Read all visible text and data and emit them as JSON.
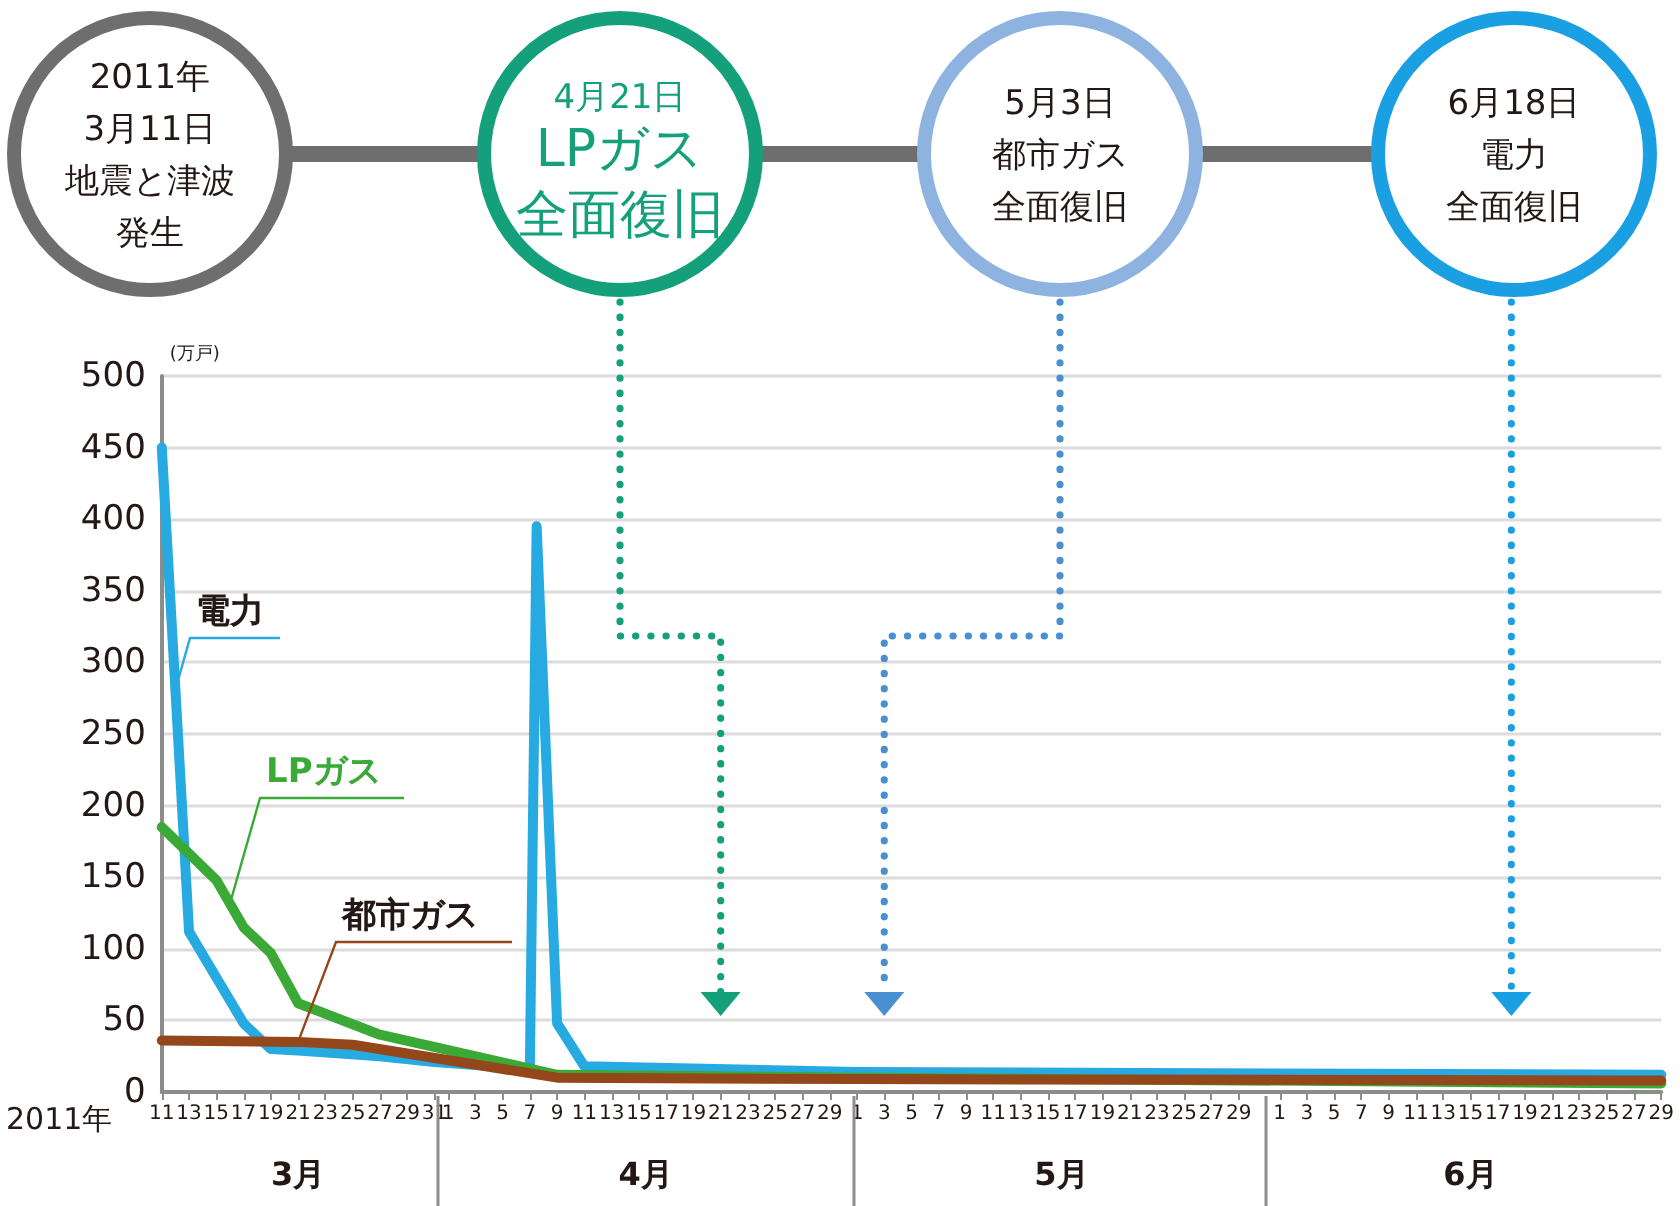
{
  "chart_data": {
    "type": "line",
    "xlabel": "2011年",
    "ylabel": "(万戸)",
    "annotations": [
      "2011年",
      "3月11日",
      "地震と津波",
      "発生",
      "4月21日",
      "LPガス",
      "全面復旧",
      "5月3日",
      "都市ガス",
      "全面復旧",
      "6月18日",
      "電力",
      "全面復旧"
    ],
    "series": [
      {
        "name": "電力",
        "color": "#27aae1",
        "x": [
          "2011-03-11",
          "2011-03-13",
          "2011-03-15",
          "2011-03-17",
          "2011-03-19",
          "2011-03-21",
          "2011-03-27",
          "2011-03-31",
          "2011-04-07",
          "2011-04-07T12:00",
          "2011-04-09",
          "2011-04-11",
          "2011-05-01",
          "2011-06-29"
        ],
        "values": [
          450,
          112,
          80,
          48,
          30,
          29,
          25,
          21,
          16,
          395,
          48,
          18,
          14,
          12
        ]
      },
      {
        "name": "LPガス",
        "color": "#3aa935",
        "x": [
          "2011-03-11",
          "2011-03-15",
          "2011-03-17",
          "2011-03-19",
          "2011-03-21",
          "2011-03-27",
          "2011-04-09",
          "2011-05-01",
          "2011-06-29"
        ],
        "values": [
          185,
          148,
          115,
          97,
          62,
          40,
          12,
          10,
          6
        ]
      },
      {
        "name": "都市ガス",
        "color": "#94471b",
        "x": [
          "2011-03-11",
          "2011-03-21",
          "2011-03-25",
          "2011-04-09",
          "2011-05-01",
          "2011-06-29"
        ],
        "values": [
          36,
          35,
          33,
          10,
          9,
          8
        ]
      }
    ],
    "xlim": [
      "2011-03-11",
      "2011-06-29"
    ],
    "xticks": [
      {
        "value": "2011-03-11",
        "label": "11"
      },
      {
        "value": "2011-03-13",
        "label": "13"
      },
      {
        "value": "2011-03-15",
        "label": "15"
      },
      {
        "value": "2011-03-17",
        "label": "17"
      },
      {
        "value": "2011-03-19",
        "label": "19"
      },
      {
        "value": "2011-03-21",
        "label": "21"
      },
      {
        "value": "2011-03-23",
        "label": "23"
      },
      {
        "value": "2011-03-25",
        "label": "25"
      },
      {
        "value": "2011-03-27",
        "label": "27"
      },
      {
        "value": "2011-03-29",
        "label": "29"
      },
      {
        "value": "2011-03-31",
        "label": "31"
      },
      {
        "value": "2011-04-01",
        "label": "1"
      },
      {
        "value": "2011-04-03",
        "label": "3"
      },
      {
        "value": "2011-04-05",
        "label": "5"
      },
      {
        "value": "2011-04-07",
        "label": "7"
      },
      {
        "value": "2011-04-09",
        "label": "9"
      },
      {
        "value": "2011-04-11",
        "label": "11"
      },
      {
        "value": "2011-04-13",
        "label": "13"
      },
      {
        "value": "2011-04-15",
        "label": "15"
      },
      {
        "value": "2011-04-17",
        "label": "17"
      },
      {
        "value": "2011-04-19",
        "label": "19"
      },
      {
        "value": "2011-04-21",
        "label": "21"
      },
      {
        "value": "2011-04-23",
        "label": "23"
      },
      {
        "value": "2011-04-25",
        "label": "25"
      },
      {
        "value": "2011-04-27",
        "label": "27"
      },
      {
        "value": "2011-04-29",
        "label": "29"
      },
      {
        "value": "2011-05-01",
        "label": "1"
      },
      {
        "value": "2011-05-03",
        "label": "3"
      },
      {
        "value": "2011-05-05",
        "label": "5"
      },
      {
        "value": "2011-05-07",
        "label": "7"
      },
      {
        "value": "2011-05-09",
        "label": "9"
      },
      {
        "value": "2011-05-11",
        "label": "11"
      },
      {
        "value": "2011-05-13",
        "label": "13"
      },
      {
        "value": "2011-05-15",
        "label": "15"
      },
      {
        "value": "2011-05-17",
        "label": "17"
      },
      {
        "value": "2011-05-19",
        "label": "19"
      },
      {
        "value": "2011-05-21",
        "label": "21"
      },
      {
        "value": "2011-05-23",
        "label": "23"
      },
      {
        "value": "2011-05-25",
        "label": "25"
      },
      {
        "value": "2011-05-27",
        "label": "27"
      },
      {
        "value": "2011-05-29",
        "label": "29"
      },
      {
        "value": "2011-06-01",
        "label": "1"
      },
      {
        "value": "2011-06-03",
        "label": "3"
      },
      {
        "value": "2011-06-05",
        "label": "5"
      },
      {
        "value": "2011-06-07",
        "label": "7"
      },
      {
        "value": "2011-06-09",
        "label": "9"
      },
      {
        "value": "2011-06-11",
        "label": "11"
      },
      {
        "value": "2011-06-13",
        "label": "13"
      },
      {
        "value": "2011-06-15",
        "label": "15"
      },
      {
        "value": "2011-06-17",
        "label": "17"
      },
      {
        "value": "2011-06-19",
        "label": "19"
      },
      {
        "value": "2011-06-21",
        "label": "21"
      },
      {
        "value": "2011-06-23",
        "label": "23"
      },
      {
        "value": "2011-06-25",
        "label": "25"
      },
      {
        "value": "2011-06-27",
        "label": "27"
      },
      {
        "value": "2011-06-29",
        "label": "29"
      }
    ],
    "x2lim": [
      "2011-03-11",
      "2011-06-29"
    ],
    "x2ticks": [
      {
        "value": "2011-03-21",
        "label": "3月"
      },
      {
        "value": "2011-04-15T12:00",
        "label": "4月"
      },
      {
        "value": "2011-05-16",
        "label": "5月"
      },
      {
        "value": "2011-06-15",
        "label": "6月"
      }
    ],
    "ylim": [
      0,
      500
    ],
    "yticks": [
      0,
      50,
      100,
      150,
      200,
      250,
      300,
      350,
      400,
      450,
      500
    ],
    "ref_lines": [
      {
        "axis": "x",
        "value": "2011-04-21",
        "color": "#13a07a",
        "line_style": "dotted"
      },
      {
        "axis": "x",
        "value": "2011-05-03",
        "color": "#4a90d0",
        "line_style": "dotted"
      },
      {
        "axis": "x",
        "value": "2011-06-18",
        "color": "#1a9fe3",
        "line_style": "dotted"
      }
    ],
    "grid": "y",
    "legend": false,
    "marker": "none",
    "line_style": "solid"
  }
}
